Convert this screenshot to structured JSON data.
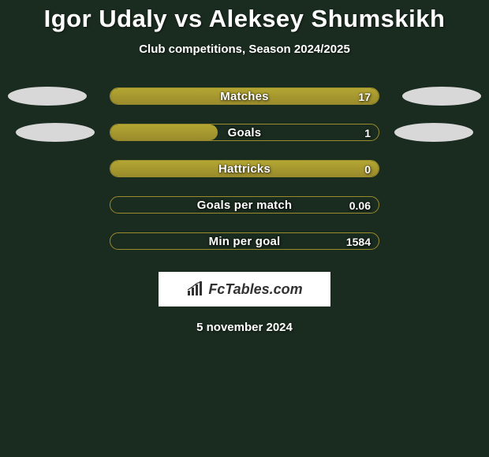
{
  "title": "Igor Udaly vs Aleksey Shumskikh",
  "subtitle": "Club competitions, Season 2024/2025",
  "colors": {
    "background": "#1a2b1f",
    "bar_fill_top": "#b3a632",
    "bar_fill_bottom": "#9a8b2c",
    "bar_border": "#9a8b2c",
    "ellipse": "#d8d8d8",
    "text": "#ffffff",
    "brand_box_bg": "#ffffff",
    "brand_text": "#323232"
  },
  "typography": {
    "title_fontsize": 31,
    "title_weight": 900,
    "subtitle_fontsize": 15,
    "label_fontsize": 15,
    "value_fontsize": 14,
    "date_fontsize": 15,
    "brand_fontsize": 18
  },
  "bar": {
    "outer_width": 342,
    "height": 22,
    "border_radius": 11,
    "row_gap": 24
  },
  "rows": [
    {
      "label": "Matches",
      "value": "17",
      "fill_pct": 100,
      "left_ellipse": true,
      "right_ellipse": true,
      "ellipse_variant": 1
    },
    {
      "label": "Goals",
      "value": "1",
      "fill_pct": 40,
      "left_ellipse": true,
      "right_ellipse": true,
      "ellipse_variant": 2
    },
    {
      "label": "Hattricks",
      "value": "0",
      "fill_pct": 100,
      "left_ellipse": false,
      "right_ellipse": false,
      "ellipse_variant": 0
    },
    {
      "label": "Goals per match",
      "value": "0.06",
      "fill_pct": 0,
      "left_ellipse": false,
      "right_ellipse": false,
      "ellipse_variant": 0
    },
    {
      "label": "Min per goal",
      "value": "1584",
      "fill_pct": 0,
      "left_ellipse": false,
      "right_ellipse": false,
      "ellipse_variant": 0
    }
  ],
  "brand": {
    "text": "FcTables.com",
    "icon_name": "bar-chart-icon"
  },
  "date": "5 november 2024"
}
